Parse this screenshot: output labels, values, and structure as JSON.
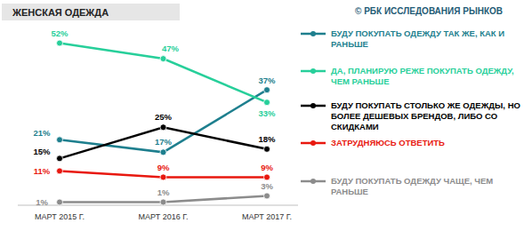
{
  "chart_data": {
    "type": "line",
    "title": "ЖЕНСКАЯ ОДЕЖДА",
    "subtitle": "© РБК ИССЛЕДОВАНИЯ РЫНКОВ",
    "categories": [
      "МАРТ 2015 Г.",
      "МАРТ 2016 Г.",
      "МАРТ 2017 Г."
    ],
    "ylim": [
      0,
      55
    ],
    "tick_labels": "x",
    "grid": false,
    "legend": "right",
    "data_labels": true,
    "series": [
      {
        "name": "БУДУ ПОКУПАТЬ ОДЕЖДУ ТАК ЖЕ, КАК И РАНЬШЕ",
        "color": "#1e7f8e",
        "marker": "circle",
        "values": [
          21,
          17,
          37
        ],
        "value_labels": [
          "21%",
          "17%",
          "37%"
        ]
      },
      {
        "name": "ДА, ПЛАНИРУЮ РЕЖЕ ПОКУПАТЬ ОДЕЖДУ, ЧЕМ РАНЬШЕ",
        "color": "#27cf9a",
        "marker": "circle",
        "values": [
          52,
          47,
          33
        ],
        "value_labels": [
          "52%",
          "47%",
          "33%"
        ]
      },
      {
        "name": "БУДУ ПОКУПАТЬ СТОЛЬКО ЖЕ ОДЕЖДЫ, НО БОЛЕЕ ДЕШЕВЫХ БРЕНДОВ, ЛИБО СО СКИДКАМИ",
        "color": "#000000",
        "marker": "circle",
        "values": [
          15,
          25,
          18
        ],
        "value_labels": [
          "15%",
          "25%",
          "18%"
        ]
      },
      {
        "name": "ЗАТРУДНЯЮСЬ ОТВЕТИТЬ",
        "color": "#e8180f",
        "marker": "circle",
        "values": [
          11,
          9,
          9
        ],
        "value_labels": [
          "11%",
          "9%",
          "9%"
        ]
      },
      {
        "name": "БУДУ ПОКУПАТЬ ОДЕЖДУ ЧАЩЕ, ЧЕМ РАНЬШЕ",
        "color": "#8c8c8c",
        "marker": "circle",
        "values": [
          1,
          1,
          3
        ],
        "value_labels": [
          "1%",
          "1%",
          "3%"
        ]
      }
    ]
  }
}
